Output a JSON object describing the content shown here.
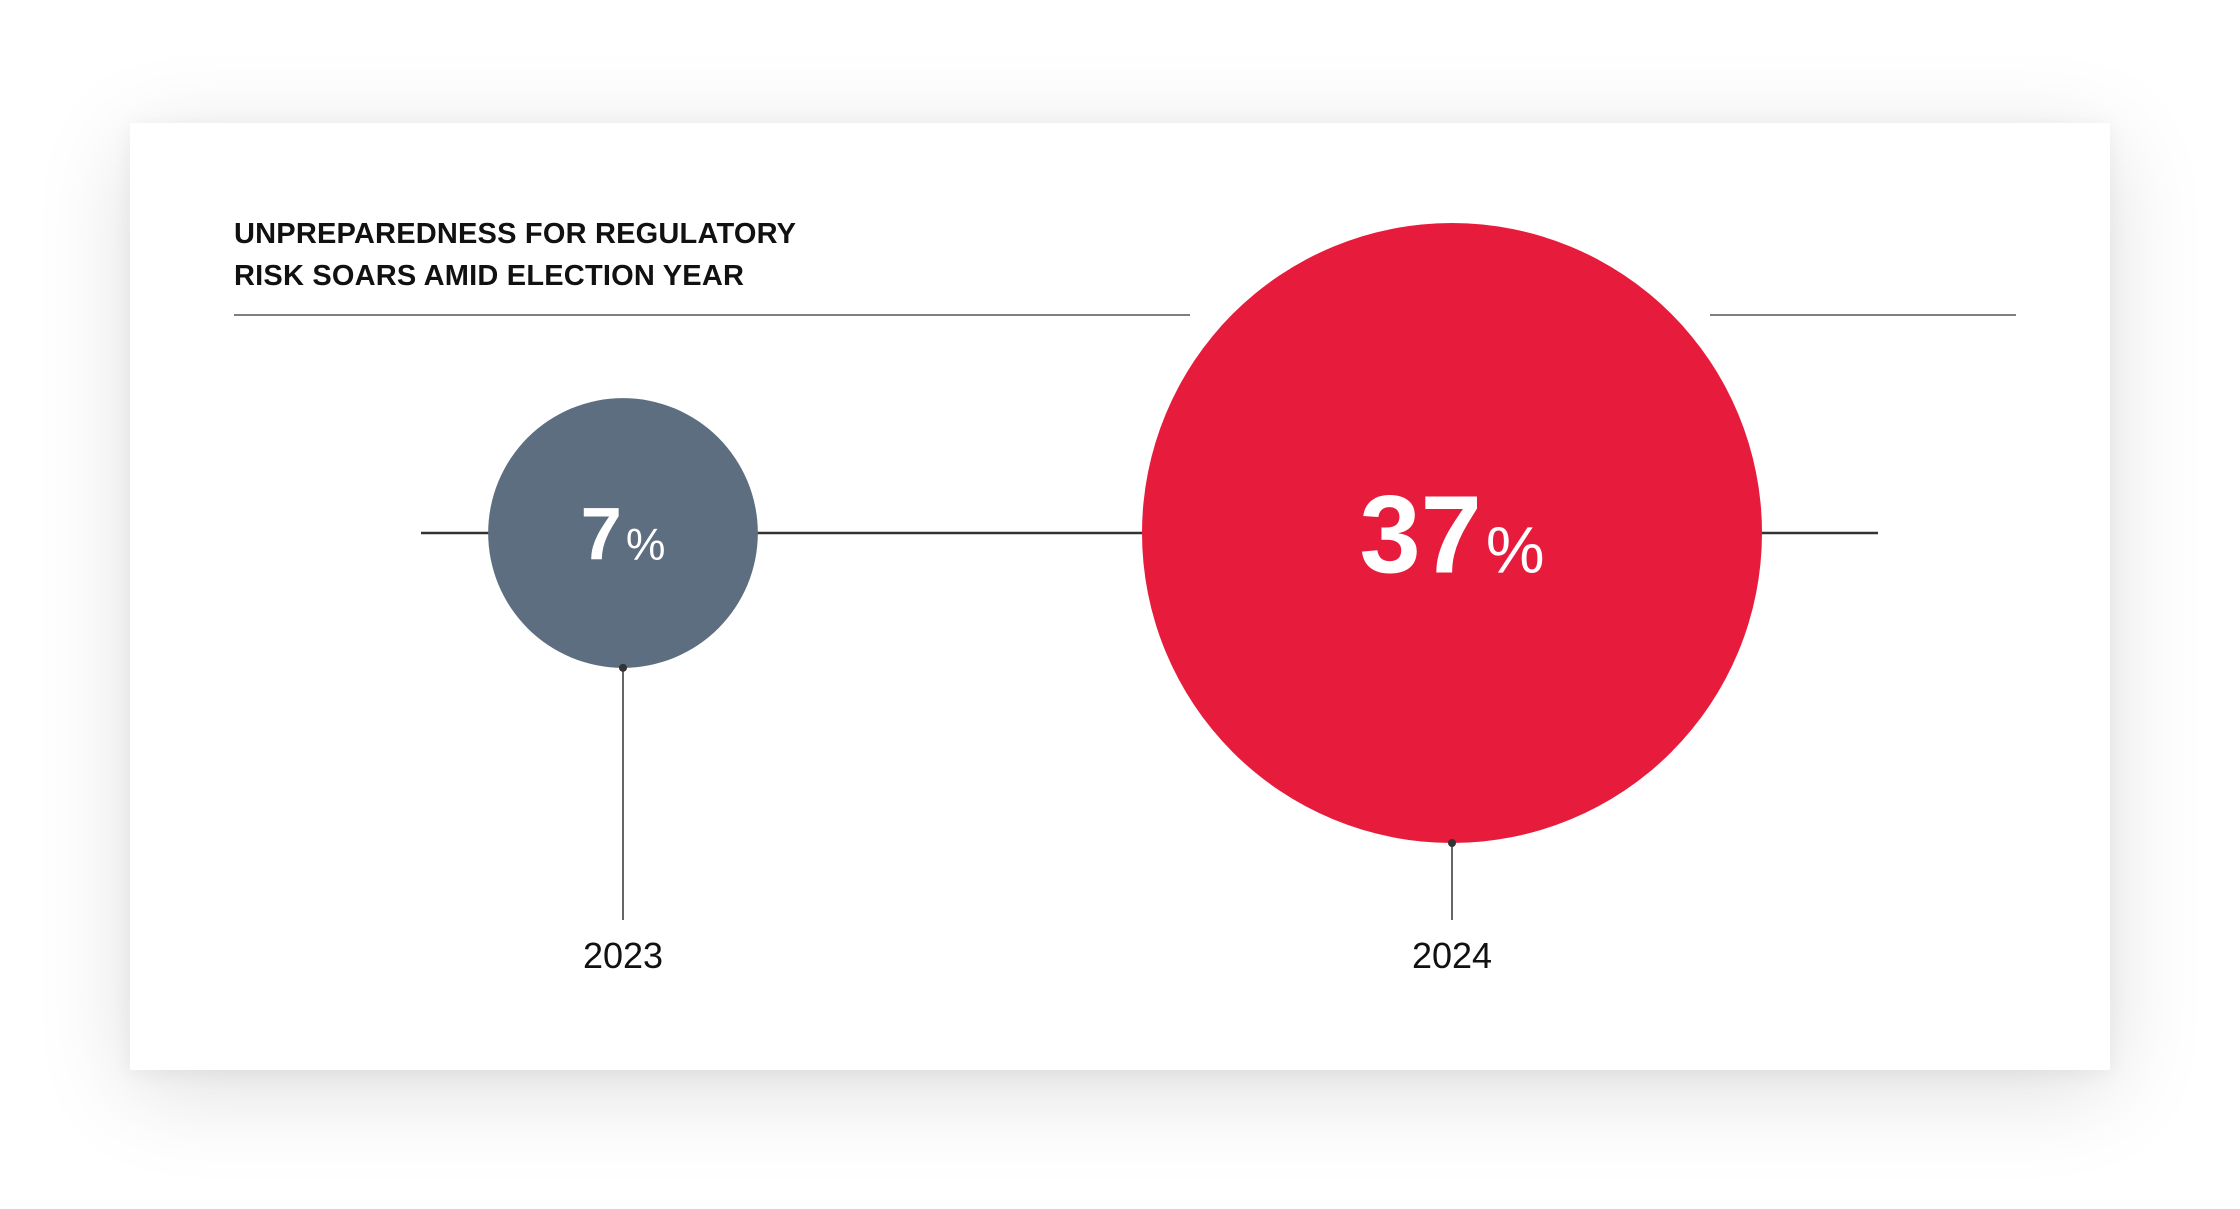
{
  "title_lines": [
    "UNPREPAREDNESS FOR REGULATORY",
    "RISK SOARS AMID ELECTION YEAR"
  ],
  "colors": {
    "series_2023": "#5d6e80",
    "series_2024": "#e71c3c",
    "line": "#333333",
    "text": "#111111"
  },
  "chart_data": {
    "type": "bubble",
    "title": "UNPREPAREDNESS FOR REGULATORY RISK SOARS AMID ELECTION YEAR",
    "categories": [
      "2023",
      "2024"
    ],
    "values": [
      7,
      37
    ],
    "value_labels": [
      "7",
      "37"
    ],
    "unit": "%",
    "series": [
      {
        "category": "2023",
        "value": 7,
        "color": "#5d6e80"
      },
      {
        "category": "2024",
        "value": 37,
        "color": "#e71c3c"
      }
    ]
  }
}
